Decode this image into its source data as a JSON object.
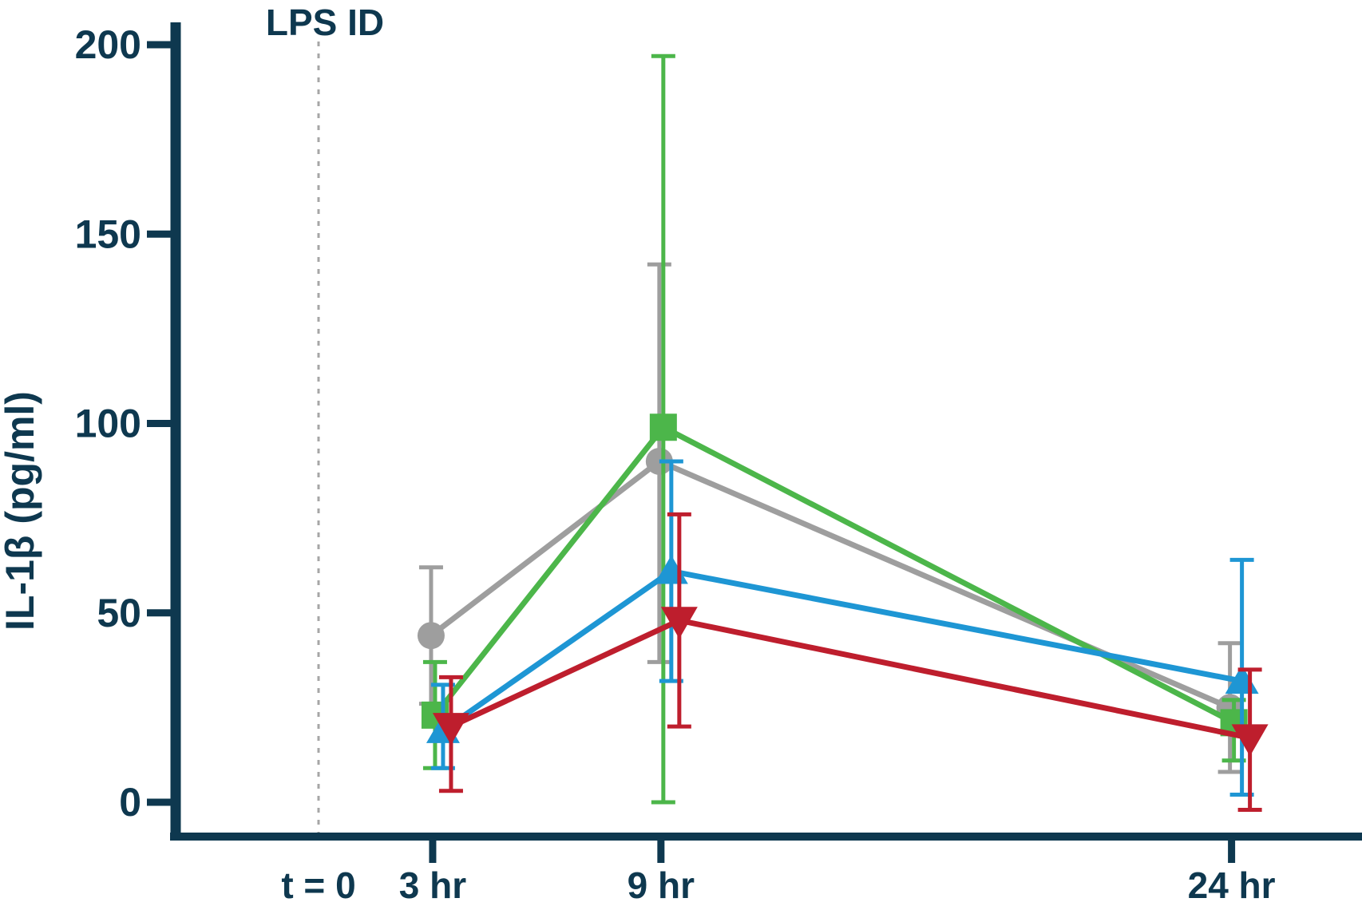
{
  "chart_data": {
    "type": "line",
    "title": "",
    "xlabel": "",
    "ylabel": "IL-1β (pg/ml)",
    "ylim": [
      0,
      200
    ],
    "yticks": [
      0,
      50,
      100,
      150,
      200
    ],
    "x_hours": [
      3,
      9,
      24
    ],
    "x_tick_labels": [
      "3 hr",
      "9 hr",
      "24 hr"
    ],
    "baseline_label": "t = 0",
    "annotation": {
      "text": "LPS ID",
      "at_hour": 0,
      "line_style": "dotted",
      "line_color": "#a6a6a6"
    },
    "grid": false,
    "legend_position": "none",
    "axis_color": "#0e384f",
    "error_bars": "mean with upper/lower whisker values read from plot",
    "series": [
      {
        "name": "gray-circle",
        "marker": "circle",
        "color": "#9e9e9e",
        "means": [
          44,
          90,
          25
        ],
        "upper": [
          62,
          142,
          42
        ],
        "lower": [
          26,
          37,
          8
        ]
      },
      {
        "name": "green-square",
        "marker": "square",
        "color": "#4cb64a",
        "means": [
          23,
          99,
          21
        ],
        "upper": [
          37,
          197,
          27
        ],
        "lower": [
          9,
          0,
          11
        ]
      },
      {
        "name": "blue-triangle-up",
        "marker": "triangle-up",
        "color": "#1e96d4",
        "means": [
          19,
          61,
          32
        ],
        "upper": [
          31,
          90,
          64
        ],
        "lower": [
          9,
          32,
          2
        ]
      },
      {
        "name": "red-triangle-down",
        "marker": "triangle-down",
        "color": "#be1e2d",
        "means": [
          20,
          48,
          17
        ],
        "upper": [
          33,
          76,
          35
        ],
        "lower": [
          3,
          20,
          -2
        ]
      }
    ]
  }
}
